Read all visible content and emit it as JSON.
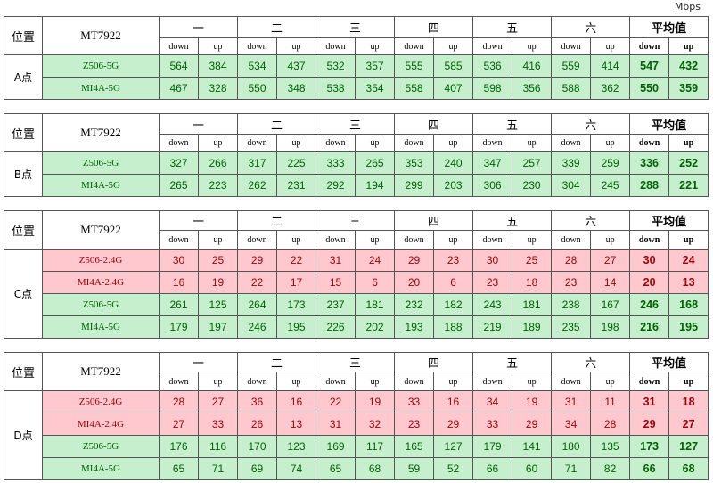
{
  "unit": "Mbps",
  "tables": [
    {
      "position_header": "位置",
      "device": "MT7922",
      "location": "A点",
      "groups": [
        "一",
        "二",
        "三",
        "四",
        "五",
        "六",
        "平均值"
      ],
      "subheaders": [
        "down",
        "up",
        "down",
        "up",
        "down",
        "up",
        "down",
        "up",
        "down",
        "up",
        "down",
        "up",
        "down",
        "up"
      ],
      "rows": [
        {
          "name": "Z506-5G",
          "fill": "#c6efce",
          "text_color": "#006100",
          "values": [
            564,
            384,
            534,
            437,
            532,
            357,
            555,
            585,
            536,
            416,
            559,
            414,
            547,
            432
          ]
        },
        {
          "name": "MI4A-5G",
          "fill": "#c6efce",
          "text_color": "#006100",
          "values": [
            467,
            328,
            550,
            348,
            538,
            354,
            558,
            407,
            598,
            356,
            588,
            362,
            550,
            359
          ]
        }
      ]
    },
    {
      "position_header": "位置",
      "device": "MT7922",
      "location": "B点",
      "groups": [
        "一",
        "二",
        "三",
        "四",
        "五",
        "六",
        "平均值"
      ],
      "subheaders": [
        "down",
        "up",
        "down",
        "up",
        "down",
        "up",
        "down",
        "up",
        "down",
        "up",
        "down",
        "up",
        "down",
        "up"
      ],
      "rows": [
        {
          "name": "Z506-5G",
          "fill": "#c6efce",
          "text_color": "#006100",
          "values": [
            327,
            266,
            317,
            225,
            333,
            265,
            353,
            240,
            347,
            257,
            339,
            259,
            336,
            252
          ]
        },
        {
          "name": "MI4A-5G",
          "fill": "#c6efce",
          "text_color": "#006100",
          "values": [
            265,
            223,
            262,
            231,
            292,
            194,
            299,
            203,
            306,
            230,
            304,
            245,
            288,
            221
          ]
        }
      ]
    },
    {
      "position_header": "位置",
      "device": "MT7922",
      "location": "C点",
      "groups": [
        "一",
        "二",
        "三",
        "四",
        "五",
        "六",
        "平均值"
      ],
      "subheaders": [
        "down",
        "up",
        "down",
        "up",
        "down",
        "up",
        "down",
        "up",
        "down",
        "up",
        "down",
        "up",
        "down",
        "up"
      ],
      "rows": [
        {
          "name": "Z506-2.4G",
          "fill": "#ffc7ce",
          "text_color": "#9c0006",
          "values": [
            30,
            25,
            29,
            22,
            31,
            24,
            29,
            23,
            30,
            25,
            28,
            27,
            30,
            24
          ]
        },
        {
          "name": "MI4A-2.4G",
          "fill": "#ffc7ce",
          "text_color": "#9c0006",
          "values": [
            16,
            19,
            22,
            17,
            15,
            6,
            20,
            6,
            23,
            18,
            23,
            14,
            20,
            13
          ]
        },
        {
          "name": "Z506-5G",
          "fill": "#c6efce",
          "text_color": "#006100",
          "values": [
            261,
            125,
            264,
            173,
            237,
            181,
            232,
            182,
            243,
            181,
            238,
            167,
            246,
            168
          ]
        },
        {
          "name": "MI4A-5G",
          "fill": "#c6efce",
          "text_color": "#006100",
          "values": [
            179,
            197,
            246,
            195,
            226,
            202,
            193,
            188,
            219,
            189,
            235,
            198,
            216,
            195
          ]
        }
      ]
    },
    {
      "position_header": "位置",
      "device": "MT7922",
      "location": "D点",
      "groups": [
        "一",
        "二",
        "三",
        "四",
        "五",
        "六",
        "平均值"
      ],
      "subheaders": [
        "down",
        "up",
        "down",
        "up",
        "down",
        "up",
        "down",
        "up",
        "down",
        "up",
        "down",
        "up",
        "down",
        "up"
      ],
      "rows": [
        {
          "name": "Z506-2.4G",
          "fill": "#ffc7ce",
          "text_color": "#9c0006",
          "values": [
            28,
            27,
            36,
            16,
            22,
            19,
            33,
            16,
            34,
            19,
            31,
            11,
            31,
            18
          ]
        },
        {
          "name": "MI4A-2.4G",
          "fill": "#ffc7ce",
          "text_color": "#9c0006",
          "values": [
            27,
            33,
            26,
            13,
            31,
            32,
            23,
            29,
            33,
            29,
            34,
            28,
            29,
            27
          ]
        },
        {
          "name": "Z506-5G",
          "fill": "#c6efce",
          "text_color": "#006100",
          "values": [
            176,
            116,
            170,
            123,
            169,
            117,
            165,
            127,
            179,
            141,
            180,
            135,
            173,
            127
          ]
        },
        {
          "name": "MI4A-5G",
          "fill": "#c6efce",
          "text_color": "#006100",
          "values": [
            65,
            71,
            69,
            74,
            65,
            68,
            59,
            52,
            66,
            60,
            71,
            82,
            66,
            68
          ]
        }
      ]
    }
  ]
}
